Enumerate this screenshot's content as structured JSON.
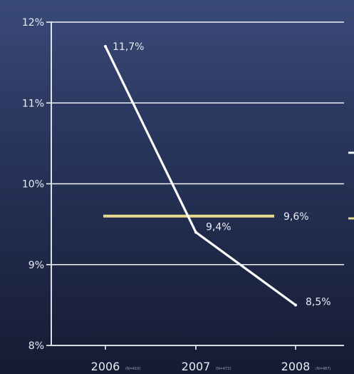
{
  "chart_data": {
    "type": "line",
    "title": "",
    "xlabel": "",
    "ylabel": "",
    "ylim": [
      8,
      12
    ],
    "yticks": [
      "8%",
      "9%",
      "10%",
      "11%",
      "12%"
    ],
    "categories": [
      "2006",
      "2007",
      "2008"
    ],
    "sample_notes": [
      "(N=410)",
      "(N=472)",
      "(N=487)"
    ],
    "series": [
      {
        "values": [
          11.7,
          9.4,
          8.5
        ],
        "labels": [
          "11,7%",
          "9,4%",
          "8,5%"
        ],
        "color": "#ffffff"
      }
    ],
    "reference_line": {
      "value": 9.6,
      "label": "9,6%",
      "color": "#e8d98a"
    },
    "grid": true
  }
}
